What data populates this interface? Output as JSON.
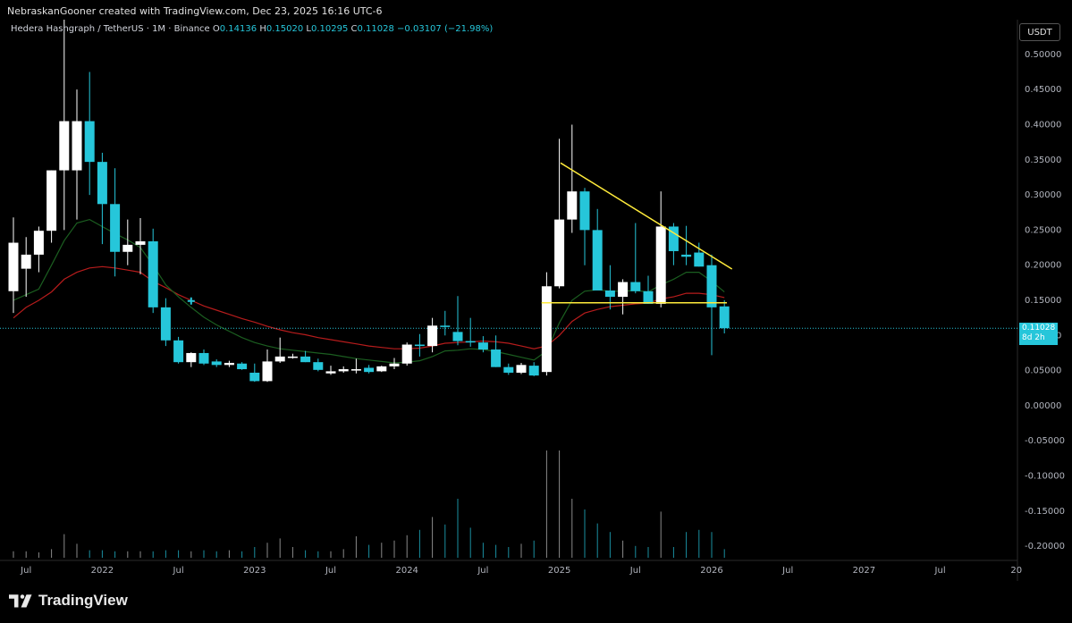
{
  "header": {
    "watermark": "NebraskanGooner created with TradingView.com, Dec 23, 2025 16:16 UTC-6"
  },
  "legend": {
    "symbol": "Hedera Hashgraph / TetherUS · 1M · Binance",
    "o_key": "O",
    "o_val": "0.14136",
    "h_key": "H",
    "h_val": "0.15020",
    "l_key": "L",
    "l_val": "0.10295",
    "c_key": "C",
    "c_val": "0.11028",
    "change": "−0.03107 (−21.98%)"
  },
  "toolbar": {
    "currency": "USDT"
  },
  "price_label": {
    "value": "0.11028",
    "countdown": "8d 2h"
  },
  "footer": {
    "brand": "TradingView"
  },
  "colors": {
    "up": "#ffffff",
    "down": "#26c6da",
    "ema_green": "#1b5e20",
    "ema_red": "#b71c1c",
    "trendline": "#ffeb3b",
    "grid": "#1a1a1a",
    "axis_text": "#b2b5be"
  },
  "chart_data": {
    "type": "candlestick",
    "timeframe": "1M",
    "ylim": [
      -0.21,
      0.51
    ],
    "y_ticks": [
      "0.50000",
      "0.45000",
      "0.40000",
      "0.35000",
      "0.30000",
      "0.25000",
      "0.20000",
      "0.15000",
      "0.10000",
      "0.05000",
      "0.00000",
      "-0.05000",
      "-0.10000",
      "-0.15000",
      "-0.20000"
    ],
    "x_ticks": [
      {
        "label": "Jul",
        "i": 1
      },
      {
        "label": "2022",
        "i": 7
      },
      {
        "label": "Jul",
        "i": 13
      },
      {
        "label": "2023",
        "i": 19
      },
      {
        "label": "Jul",
        "i": 25
      },
      {
        "label": "2024",
        "i": 31
      },
      {
        "label": "Jul",
        "i": 37
      },
      {
        "label": "2025",
        "i": 43
      },
      {
        "label": "Jul",
        "i": 49
      },
      {
        "label": "2026",
        "i": 55
      },
      {
        "label": "Jul",
        "i": 61
      },
      {
        "label": "2027",
        "i": 67
      },
      {
        "label": "Jul",
        "i": 73
      },
      {
        "label": "20",
        "i": 79
      }
    ],
    "candles": [
      {
        "o": 0.163,
        "h": 0.268,
        "l": 0.132,
        "c": 0.232
      },
      {
        "o": 0.195,
        "h": 0.24,
        "l": 0.155,
        "c": 0.215
      },
      {
        "o": 0.215,
        "h": 0.255,
        "l": 0.19,
        "c": 0.249
      },
      {
        "o": 0.249,
        "h": 0.335,
        "l": 0.232,
        "c": 0.335
      },
      {
        "o": 0.335,
        "h": 0.57,
        "l": 0.25,
        "c": 0.405
      },
      {
        "o": 0.335,
        "h": 0.45,
        "l": 0.265,
        "c": 0.405
      },
      {
        "o": 0.405,
        "h": 0.475,
        "l": 0.3,
        "c": 0.347
      },
      {
        "o": 0.347,
        "h": 0.36,
        "l": 0.23,
        "c": 0.287
      },
      {
        "o": 0.287,
        "h": 0.338,
        "l": 0.184,
        "c": 0.219
      },
      {
        "o": 0.219,
        "h": 0.265,
        "l": 0.2,
        "c": 0.229
      },
      {
        "o": 0.229,
        "h": 0.267,
        "l": 0.187,
        "c": 0.234
      },
      {
        "o": 0.234,
        "h": 0.252,
        "l": 0.132,
        "c": 0.14
      },
      {
        "o": 0.14,
        "h": 0.153,
        "l": 0.085,
        "c": 0.093
      },
      {
        "o": 0.093,
        "h": 0.098,
        "l": 0.06,
        "c": 0.062
      },
      {
        "o": 0.062,
        "h": 0.076,
        "l": 0.055,
        "c": 0.075
      },
      {
        "o": 0.075,
        "h": 0.08,
        "l": 0.058,
        "c": 0.06
      },
      {
        "o": 0.063,
        "h": 0.066,
        "l": 0.055,
        "c": 0.058
      },
      {
        "o": 0.058,
        "h": 0.064,
        "l": 0.055,
        "c": 0.061
      },
      {
        "o": 0.06,
        "h": 0.062,
        "l": 0.051,
        "c": 0.052
      },
      {
        "o": 0.047,
        "h": 0.06,
        "l": 0.034,
        "c": 0.035
      },
      {
        "o": 0.035,
        "h": 0.08,
        "l": 0.034,
        "c": 0.063
      },
      {
        "o": 0.063,
        "h": 0.097,
        "l": 0.061,
        "c": 0.07
      },
      {
        "o": 0.068,
        "h": 0.074,
        "l": 0.067,
        "c": 0.07
      },
      {
        "o": 0.07,
        "h": 0.078,
        "l": 0.062,
        "c": 0.062
      },
      {
        "o": 0.062,
        "h": 0.067,
        "l": 0.049,
        "c": 0.051
      },
      {
        "o": 0.046,
        "h": 0.057,
        "l": 0.044,
        "c": 0.049
      },
      {
        "o": 0.049,
        "h": 0.056,
        "l": 0.047,
        "c": 0.052
      },
      {
        "o": 0.05,
        "h": 0.067,
        "l": 0.046,
        "c": 0.052
      },
      {
        "o": 0.054,
        "h": 0.058,
        "l": 0.046,
        "c": 0.048
      },
      {
        "o": 0.049,
        "h": 0.057,
        "l": 0.048,
        "c": 0.056
      },
      {
        "o": 0.056,
        "h": 0.068,
        "l": 0.052,
        "c": 0.06
      },
      {
        "o": 0.06,
        "h": 0.09,
        "l": 0.057,
        "c": 0.087
      },
      {
        "o": 0.087,
        "h": 0.102,
        "l": 0.07,
        "c": 0.085
      },
      {
        "o": 0.085,
        "h": 0.125,
        "l": 0.076,
        "c": 0.114
      },
      {
        "o": 0.114,
        "h": 0.135,
        "l": 0.1,
        "c": 0.112
      },
      {
        "o": 0.105,
        "h": 0.156,
        "l": 0.086,
        "c": 0.092
      },
      {
        "o": 0.092,
        "h": 0.125,
        "l": 0.084,
        "c": 0.09
      },
      {
        "o": 0.09,
        "h": 0.099,
        "l": 0.076,
        "c": 0.08
      },
      {
        "o": 0.08,
        "h": 0.1,
        "l": 0.055,
        "c": 0.055
      },
      {
        "o": 0.055,
        "h": 0.06,
        "l": 0.044,
        "c": 0.047
      },
      {
        "o": 0.047,
        "h": 0.061,
        "l": 0.045,
        "c": 0.058
      },
      {
        "o": 0.057,
        "h": 0.062,
        "l": 0.042,
        "c": 0.043
      },
      {
        "o": 0.048,
        "h": 0.19,
        "l": 0.043,
        "c": 0.17
      },
      {
        "o": 0.17,
        "h": 0.38,
        "l": 0.167,
        "c": 0.265
      },
      {
        "o": 0.265,
        "h": 0.4,
        "l": 0.246,
        "c": 0.305
      },
      {
        "o": 0.305,
        "h": 0.31,
        "l": 0.2,
        "c": 0.25
      },
      {
        "o": 0.25,
        "h": 0.28,
        "l": 0.17,
        "c": 0.164
      },
      {
        "o": 0.164,
        "h": 0.2,
        "l": 0.137,
        "c": 0.155
      },
      {
        "o": 0.155,
        "h": 0.18,
        "l": 0.13,
        "c": 0.176
      },
      {
        "o": 0.176,
        "h": 0.26,
        "l": 0.16,
        "c": 0.163
      },
      {
        "o": 0.163,
        "h": 0.185,
        "l": 0.145,
        "c": 0.145
      },
      {
        "o": 0.145,
        "h": 0.305,
        "l": 0.14,
        "c": 0.255
      },
      {
        "o": 0.255,
        "h": 0.26,
        "l": 0.2,
        "c": 0.22
      },
      {
        "o": 0.215,
        "h": 0.256,
        "l": 0.2,
        "c": 0.212
      },
      {
        "o": 0.218,
        "h": 0.232,
        "l": 0.198,
        "c": 0.198
      },
      {
        "o": 0.2,
        "h": 0.215,
        "l": 0.072,
        "c": 0.14
      },
      {
        "o": 0.14136,
        "h": 0.1502,
        "l": 0.10295,
        "c": 0.11028
      }
    ],
    "ema_fast": [
      0.15,
      0.158,
      0.166,
      0.2,
      0.235,
      0.26,
      0.265,
      0.255,
      0.245,
      0.236,
      0.225,
      0.2,
      0.172,
      0.155,
      0.14,
      0.126,
      0.115,
      0.106,
      0.097,
      0.09,
      0.085,
      0.081,
      0.079,
      0.077,
      0.075,
      0.073,
      0.07,
      0.067,
      0.065,
      0.063,
      0.061,
      0.062,
      0.064,
      0.07,
      0.078,
      0.079,
      0.081,
      0.08,
      0.077,
      0.073,
      0.069,
      0.065,
      0.078,
      0.118,
      0.15,
      0.163,
      0.165,
      0.163,
      0.163,
      0.164,
      0.162,
      0.172,
      0.18,
      0.19,
      0.19,
      0.177,
      0.162
    ],
    "ema_slow": [
      0.125,
      0.14,
      0.15,
      0.162,
      0.18,
      0.19,
      0.196,
      0.198,
      0.196,
      0.193,
      0.19,
      0.177,
      0.168,
      0.158,
      0.15,
      0.142,
      0.136,
      0.13,
      0.124,
      0.119,
      0.113,
      0.108,
      0.104,
      0.101,
      0.097,
      0.094,
      0.091,
      0.088,
      0.085,
      0.083,
      0.081,
      0.081,
      0.082,
      0.085,
      0.089,
      0.09,
      0.091,
      0.092,
      0.091,
      0.089,
      0.085,
      0.081,
      0.085,
      0.1,
      0.12,
      0.132,
      0.137,
      0.141,
      0.143,
      0.145,
      0.146,
      0.152,
      0.155,
      0.16,
      0.16,
      0.158,
      0.154
    ],
    "volumes": [
      0.06,
      0.06,
      0.05,
      0.08,
      0.22,
      0.13,
      0.07,
      0.07,
      0.06,
      0.06,
      0.06,
      0.06,
      0.07,
      0.07,
      0.06,
      0.07,
      0.06,
      0.07,
      0.06,
      0.1,
      0.14,
      0.18,
      0.1,
      0.07,
      0.06,
      0.06,
      0.08,
      0.2,
      0.12,
      0.14,
      0.16,
      0.21,
      0.26,
      0.38,
      0.31,
      0.55,
      0.28,
      0.14,
      0.12,
      0.1,
      0.13,
      0.16,
      1.0,
      1.0,
      0.55,
      0.45,
      0.32,
      0.24,
      0.16,
      0.11,
      0.1,
      0.43,
      0.1,
      0.24,
      0.26,
      0.24,
      0.08
    ],
    "trendline_descending": {
      "from": {
        "i": 43.1,
        "price": 0.3455
      },
      "to": {
        "i": 56.6,
        "price": 0.1945
      }
    },
    "support_line": {
      "from": {
        "i": 41.6,
        "price": 0.1465
      },
      "to": {
        "i": 56.2,
        "price": 0.1465
      }
    },
    "marker": {
      "i": 14,
      "price": 0.149
    }
  }
}
